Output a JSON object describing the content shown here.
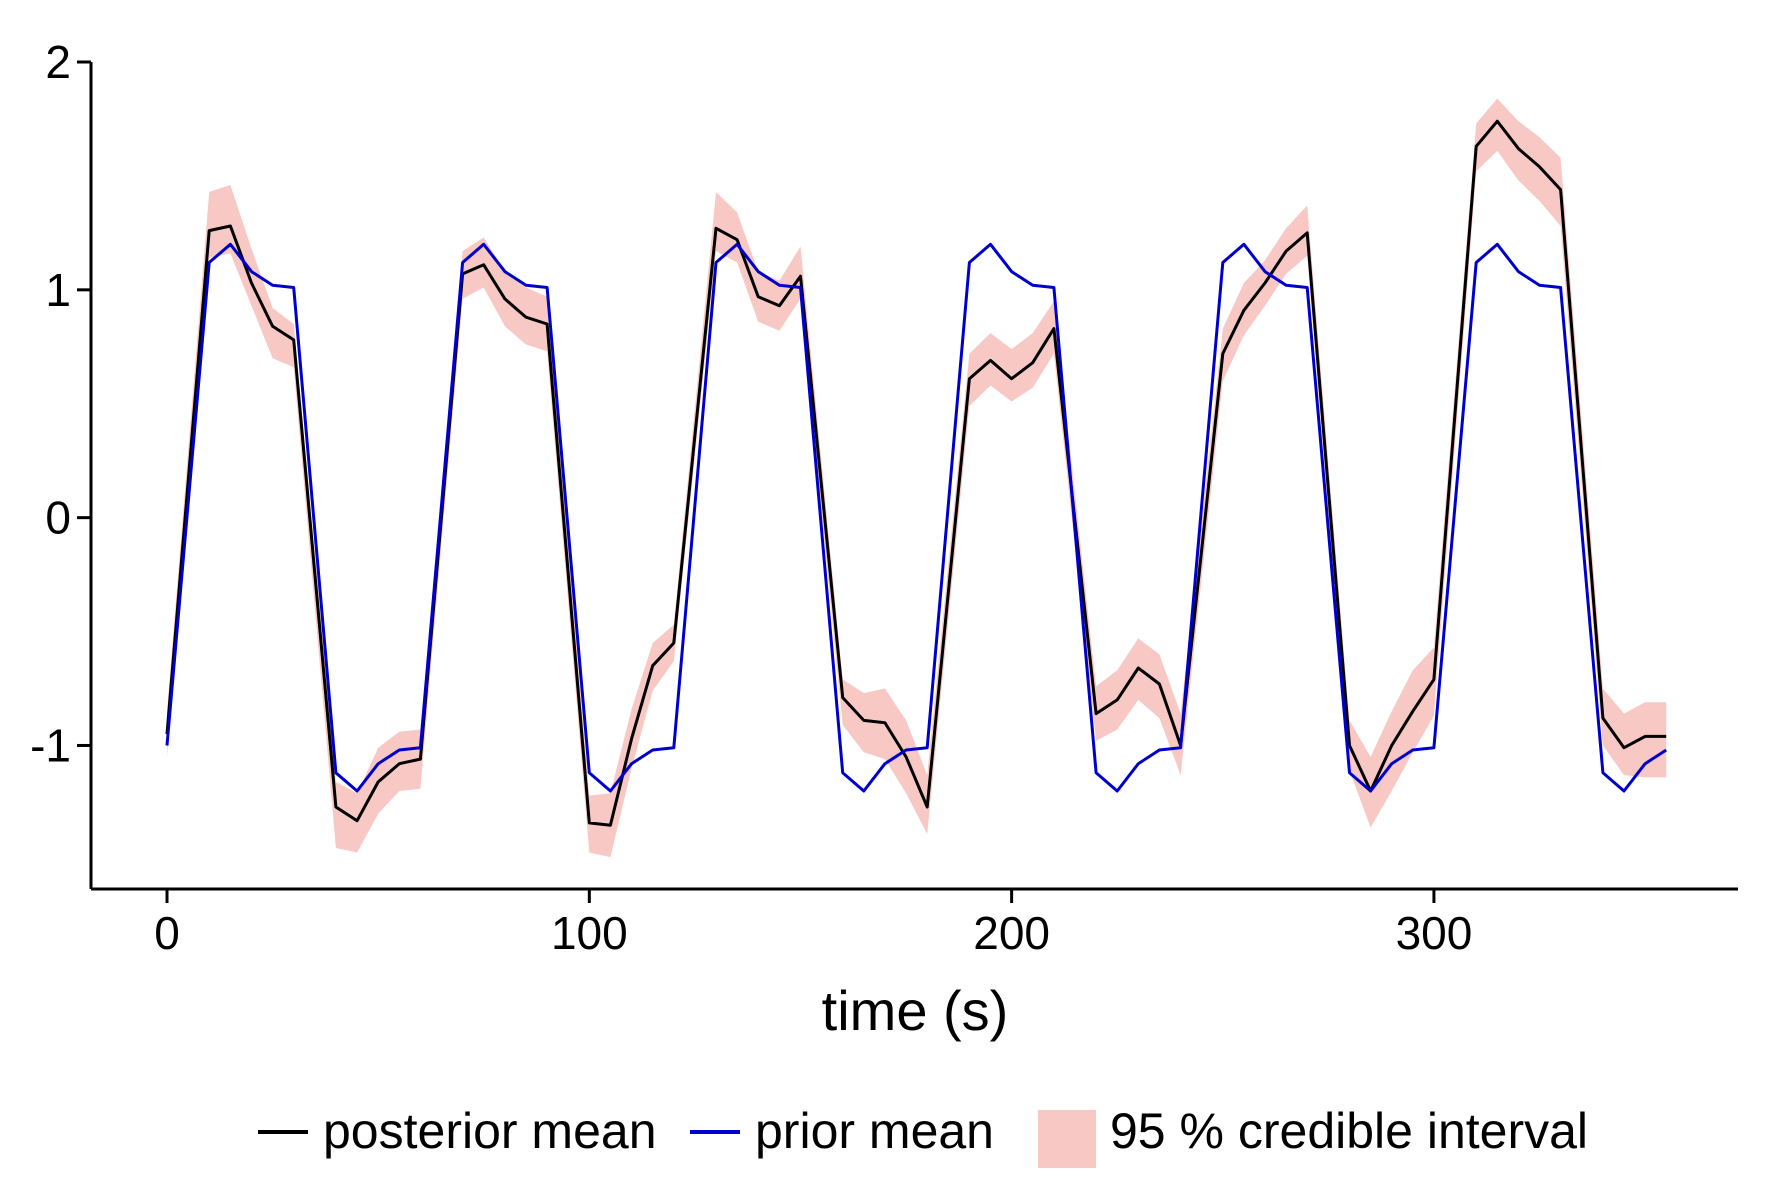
{
  "chart_data": {
    "type": "line",
    "title": "",
    "xlabel": "time (s)",
    "ylabel": "",
    "xlim": [
      -18,
      372
    ],
    "ylim": [
      -1.63,
      2.0
    ],
    "x_ticks": [
      0,
      100,
      200,
      300
    ],
    "x_tick_labels": [
      "0",
      "100",
      "200",
      "300"
    ],
    "y_ticks": [
      -1,
      0,
      1,
      2
    ],
    "y_tick_labels": [
      "-1",
      "0",
      "1",
      "2"
    ],
    "grid": false,
    "legend_position": "bottom",
    "x": [
      0,
      10,
      15,
      20,
      25,
      30,
      40,
      45,
      50,
      55,
      60,
      70,
      75,
      80,
      85,
      90,
      100,
      105,
      110,
      115,
      120,
      130,
      135,
      140,
      145,
      150,
      160,
      165,
      170,
      175,
      180,
      190,
      195,
      200,
      205,
      210,
      220,
      225,
      230,
      235,
      240,
      250,
      255,
      260,
      265,
      270,
      280,
      285,
      290,
      295,
      300,
      310,
      315,
      320,
      325,
      330,
      340,
      345,
      350,
      355
    ],
    "series": [
      {
        "name": "posterior mean",
        "color": "#000000",
        "values": [
          -0.95,
          1.26,
          1.28,
          1.03,
          0.84,
          0.78,
          -1.27,
          -1.33,
          -1.16,
          -1.08,
          -1.06,
          1.07,
          1.11,
          0.96,
          0.88,
          0.85,
          -1.34,
          -1.35,
          -0.97,
          -0.65,
          -0.55,
          1.27,
          1.22,
          0.97,
          0.93,
          1.06,
          -0.79,
          -0.89,
          -0.9,
          -1.05,
          -1.27,
          0.61,
          0.69,
          0.61,
          0.68,
          0.83,
          -0.86,
          -0.8,
          -0.66,
          -0.73,
          -1.0,
          0.72,
          0.91,
          1.03,
          1.17,
          1.25,
          -1.0,
          -1.2,
          -1.0,
          -0.85,
          -0.71,
          1.63,
          1.74,
          1.62,
          1.54,
          1.44,
          -0.88,
          -1.01,
          -0.96,
          -0.96
        ]
      },
      {
        "name": "prior mean",
        "color": "#0000cc",
        "values": [
          -1.0,
          1.12,
          1.2,
          1.08,
          1.02,
          1.01,
          -1.12,
          -1.2,
          -1.08,
          -1.02,
          -1.01,
          1.12,
          1.2,
          1.08,
          1.02,
          1.01,
          -1.12,
          -1.2,
          -1.08,
          -1.02,
          -1.01,
          1.12,
          1.2,
          1.08,
          1.02,
          1.01,
          -1.12,
          -1.2,
          -1.08,
          -1.02,
          -1.01,
          1.12,
          1.2,
          1.08,
          1.02,
          1.01,
          -1.12,
          -1.2,
          -1.08,
          -1.02,
          -1.01,
          1.12,
          1.2,
          1.08,
          1.02,
          1.01,
          -1.12,
          -1.2,
          -1.08,
          -1.02,
          -1.01,
          1.12,
          1.2,
          1.08,
          1.02,
          1.01,
          -1.12,
          -1.2,
          -1.08,
          -1.02
        ]
      }
    ],
    "interval": {
      "name": "95 % credible interval",
      "color": "#f8c8c4",
      "lower": [
        -1.05,
        1.14,
        1.16,
        0.93,
        0.7,
        0.66,
        -1.45,
        -1.47,
        -1.3,
        -1.2,
        -1.19,
        0.96,
        1.01,
        0.84,
        0.76,
        0.73,
        -1.47,
        -1.49,
        -1.1,
        -0.76,
        -0.63,
        1.17,
        1.12,
        0.86,
        0.82,
        0.96,
        -0.91,
        -1.03,
        -1.06,
        -1.21,
        -1.39,
        0.49,
        0.58,
        0.51,
        0.57,
        0.72,
        -0.98,
        -0.93,
        -0.8,
        -0.88,
        -1.13,
        0.6,
        0.8,
        0.93,
        1.07,
        1.15,
        -1.11,
        -1.36,
        -1.2,
        -1.03,
        -0.87,
        1.52,
        1.61,
        1.48,
        1.39,
        1.28,
        -1.0,
        -1.13,
        -1.14,
        -1.14
      ],
      "upper": [
        -0.85,
        1.43,
        1.46,
        1.18,
        0.92,
        0.85,
        -1.16,
        -1.21,
        -1.01,
        -0.94,
        -0.93,
        1.17,
        1.23,
        1.08,
        1.01,
        0.97,
        -1.22,
        -1.21,
        -0.84,
        -0.55,
        -0.47,
        1.43,
        1.34,
        1.08,
        1.04,
        1.19,
        -0.71,
        -0.77,
        -0.75,
        -0.89,
        -1.13,
        0.72,
        0.81,
        0.74,
        0.81,
        0.95,
        -0.74,
        -0.67,
        -0.53,
        -0.6,
        -0.86,
        0.83,
        1.03,
        1.13,
        1.27,
        1.37,
        -0.89,
        -1.05,
        -0.85,
        -0.67,
        -0.57,
        1.73,
        1.84,
        1.74,
        1.67,
        1.58,
        -0.75,
        -0.86,
        -0.81,
        -0.81
      ]
    }
  }
}
